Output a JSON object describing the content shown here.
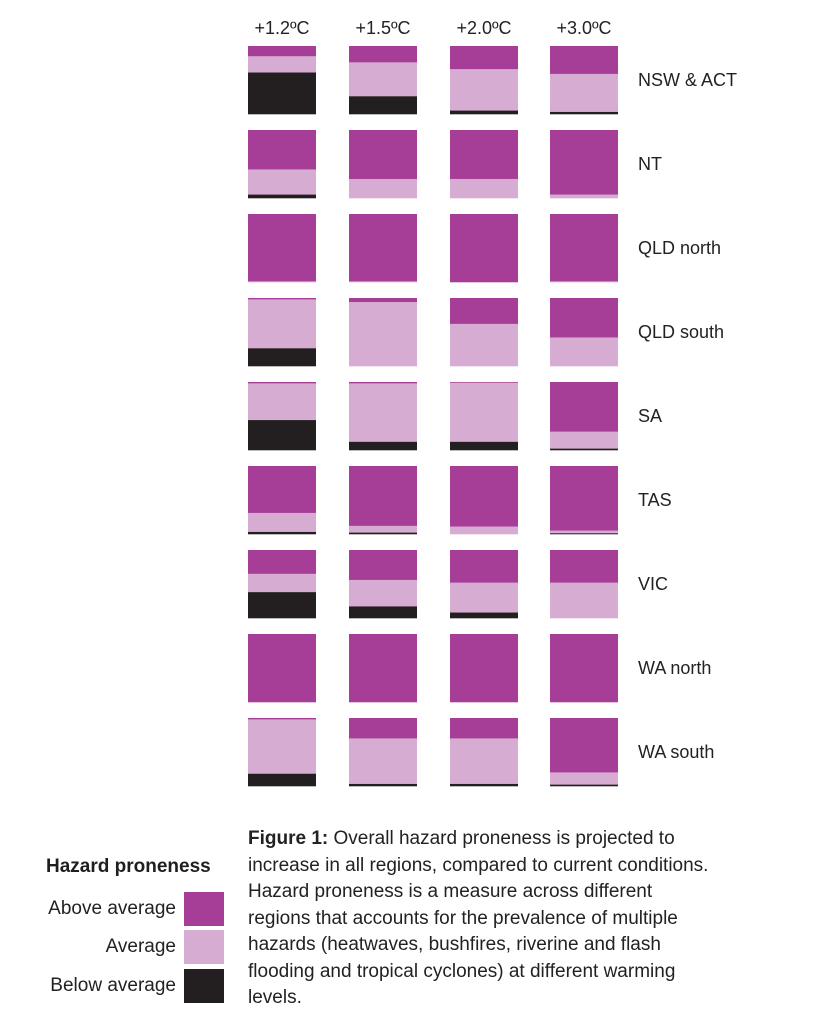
{
  "chart_data": {
    "type": "stacked-bar-grid",
    "column_labels": [
      "+1.2ºC",
      "+1.5ºC",
      "+2.0ºC",
      "+3.0ºC"
    ],
    "categories": [
      "Above average",
      "Average",
      "Below average"
    ],
    "colors": {
      "Above average": "#a63d97",
      "Average": "#d6acd2",
      "Below average": "#231f20"
    },
    "rows": [
      {
        "region": "NSW & ACT",
        "values": [
          [
            0.15,
            0.24,
            0.61
          ],
          [
            0.24,
            0.5,
            0.26
          ],
          [
            0.34,
            0.61,
            0.05
          ],
          [
            0.41,
            0.56,
            0.03
          ]
        ]
      },
      {
        "region": "NT",
        "values": [
          [
            0.58,
            0.37,
            0.05
          ],
          [
            0.72,
            0.28,
            0.0
          ],
          [
            0.72,
            0.28,
            0.0
          ],
          [
            0.95,
            0.05,
            0.0
          ]
        ]
      },
      {
        "region": "QLD north",
        "values": [
          [
            0.99,
            0.01,
            0.0
          ],
          [
            0.99,
            0.01,
            0.0
          ],
          [
            1.0,
            0.0,
            0.0
          ],
          [
            0.99,
            0.01,
            0.0
          ]
        ]
      },
      {
        "region": "QLD south",
        "values": [
          [
            0.02,
            0.72,
            0.26
          ],
          [
            0.06,
            0.94,
            0.0
          ],
          [
            0.38,
            0.62,
            0.0
          ],
          [
            0.58,
            0.42,
            0.0
          ]
        ]
      },
      {
        "region": "SA",
        "values": [
          [
            0.02,
            0.54,
            0.44
          ],
          [
            0.02,
            0.86,
            0.12
          ],
          [
            0.01,
            0.87,
            0.12
          ],
          [
            0.73,
            0.25,
            0.02
          ]
        ]
      },
      {
        "region": "TAS",
        "values": [
          [
            0.69,
            0.28,
            0.03
          ],
          [
            0.88,
            0.1,
            0.02
          ],
          [
            0.89,
            0.11,
            0.0
          ],
          [
            0.95,
            0.04,
            0.01
          ]
        ]
      },
      {
        "region": "VIC",
        "values": [
          [
            0.35,
            0.27,
            0.38
          ],
          [
            0.44,
            0.39,
            0.17
          ],
          [
            0.48,
            0.44,
            0.08
          ],
          [
            0.48,
            0.52,
            0.0
          ]
        ]
      },
      {
        "region": "WA north",
        "values": [
          [
            1.0,
            0.0,
            0.0
          ],
          [
            1.0,
            0.0,
            0.0
          ],
          [
            1.0,
            0.0,
            0.0
          ],
          [
            1.0,
            0.0,
            0.0
          ]
        ]
      },
      {
        "region": "WA south",
        "values": [
          [
            0.02,
            0.8,
            0.18
          ],
          [
            0.3,
            0.67,
            0.03
          ],
          [
            0.3,
            0.67,
            0.03
          ],
          [
            0.8,
            0.18,
            0.02
          ]
        ]
      }
    ]
  },
  "legend": {
    "title": "Hazard proneness",
    "items": [
      {
        "label": "Above average",
        "color": "#a63d97"
      },
      {
        "label": "Average",
        "color": "#d6acd2"
      },
      {
        "label": "Below average",
        "color": "#231f20"
      }
    ]
  },
  "caption": {
    "prefix": "Figure 1:",
    "text": " Overall hazard proneness is projected to increase in all regions, compared to current conditions. Hazard proneness is a measure across different regions that accounts for the prevalence of multiple hazards (heatwaves, bushfires, riverine and flash flooding and tropical cyclones) at different warming levels."
  }
}
